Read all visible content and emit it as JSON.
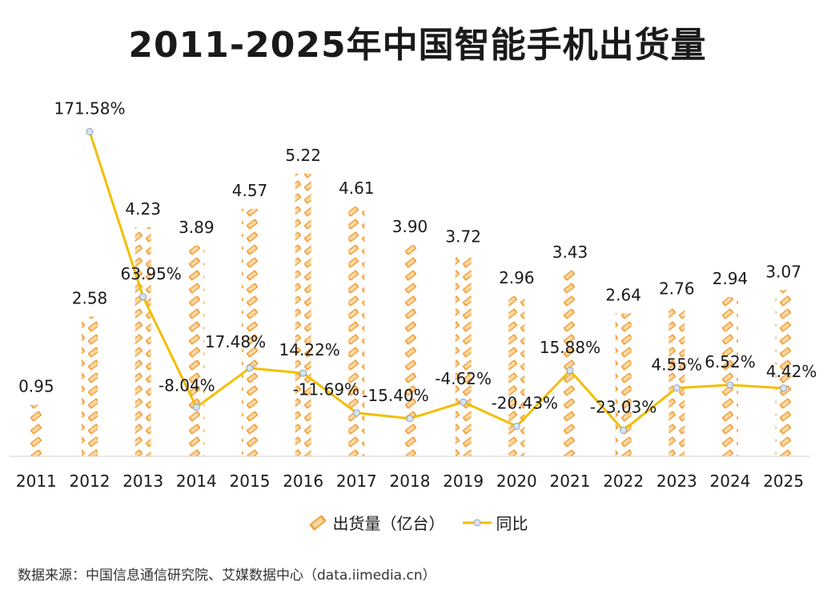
{
  "colors": {
    "bar_main": "#F4A340",
    "bar_light": "#FBD9A4",
    "line": "#F2BE00",
    "marker_fill": "#D7E3F2",
    "marker_stroke": "#8FA2B8",
    "axis": "#D0D0D0"
  },
  "chart_data": {
    "type": "bar",
    "title": "2011-2025年中国智能手机出货量",
    "categories": [
      "2011",
      "2012",
      "2013",
      "2014",
      "2015",
      "2016",
      "2017",
      "2018",
      "2019",
      "2020",
      "2021",
      "2022",
      "2023",
      "2024",
      "2025"
    ],
    "series": [
      {
        "name": "出货量（亿台）",
        "type": "bar",
        "values": [
          0.95,
          2.58,
          4.23,
          3.89,
          4.57,
          5.22,
          4.61,
          3.9,
          3.72,
          2.96,
          3.43,
          2.64,
          2.76,
          2.94,
          3.07
        ],
        "labels": [
          "0.95",
          "2.58",
          "4.23",
          "3.89",
          "4.57",
          "5.22",
          "4.61",
          "3.90",
          "3.72",
          "2.96",
          "3.43",
          "2.64",
          "2.76",
          "2.94",
          "3.07"
        ]
      },
      {
        "name": "同比",
        "type": "line",
        "values": [
          null,
          171.58,
          63.95,
          -8.04,
          17.48,
          14.22,
          -11.69,
          -15.4,
          -4.62,
          -20.43,
          15.88,
          -23.03,
          4.55,
          6.52,
          4.42
        ],
        "labels": [
          "",
          "171.58%",
          "63.95%",
          "-8.04%",
          "17.48%",
          "14.22%",
          "-11.69%",
          "-15.40%",
          "-4.62%",
          "-20.43%",
          "15.88%",
          "-23.03%",
          "4.55%",
          "6.52%",
          "4.42%"
        ]
      }
    ],
    "ylim_bar": [
      0,
      6.8
    ],
    "ylim_line": [
      -40,
      200
    ],
    "grid": false,
    "legend_position": "bottom",
    "source": "数据来源：中国信息通信研究院、艾媒数据中心（data.iimedia.cn）"
  }
}
